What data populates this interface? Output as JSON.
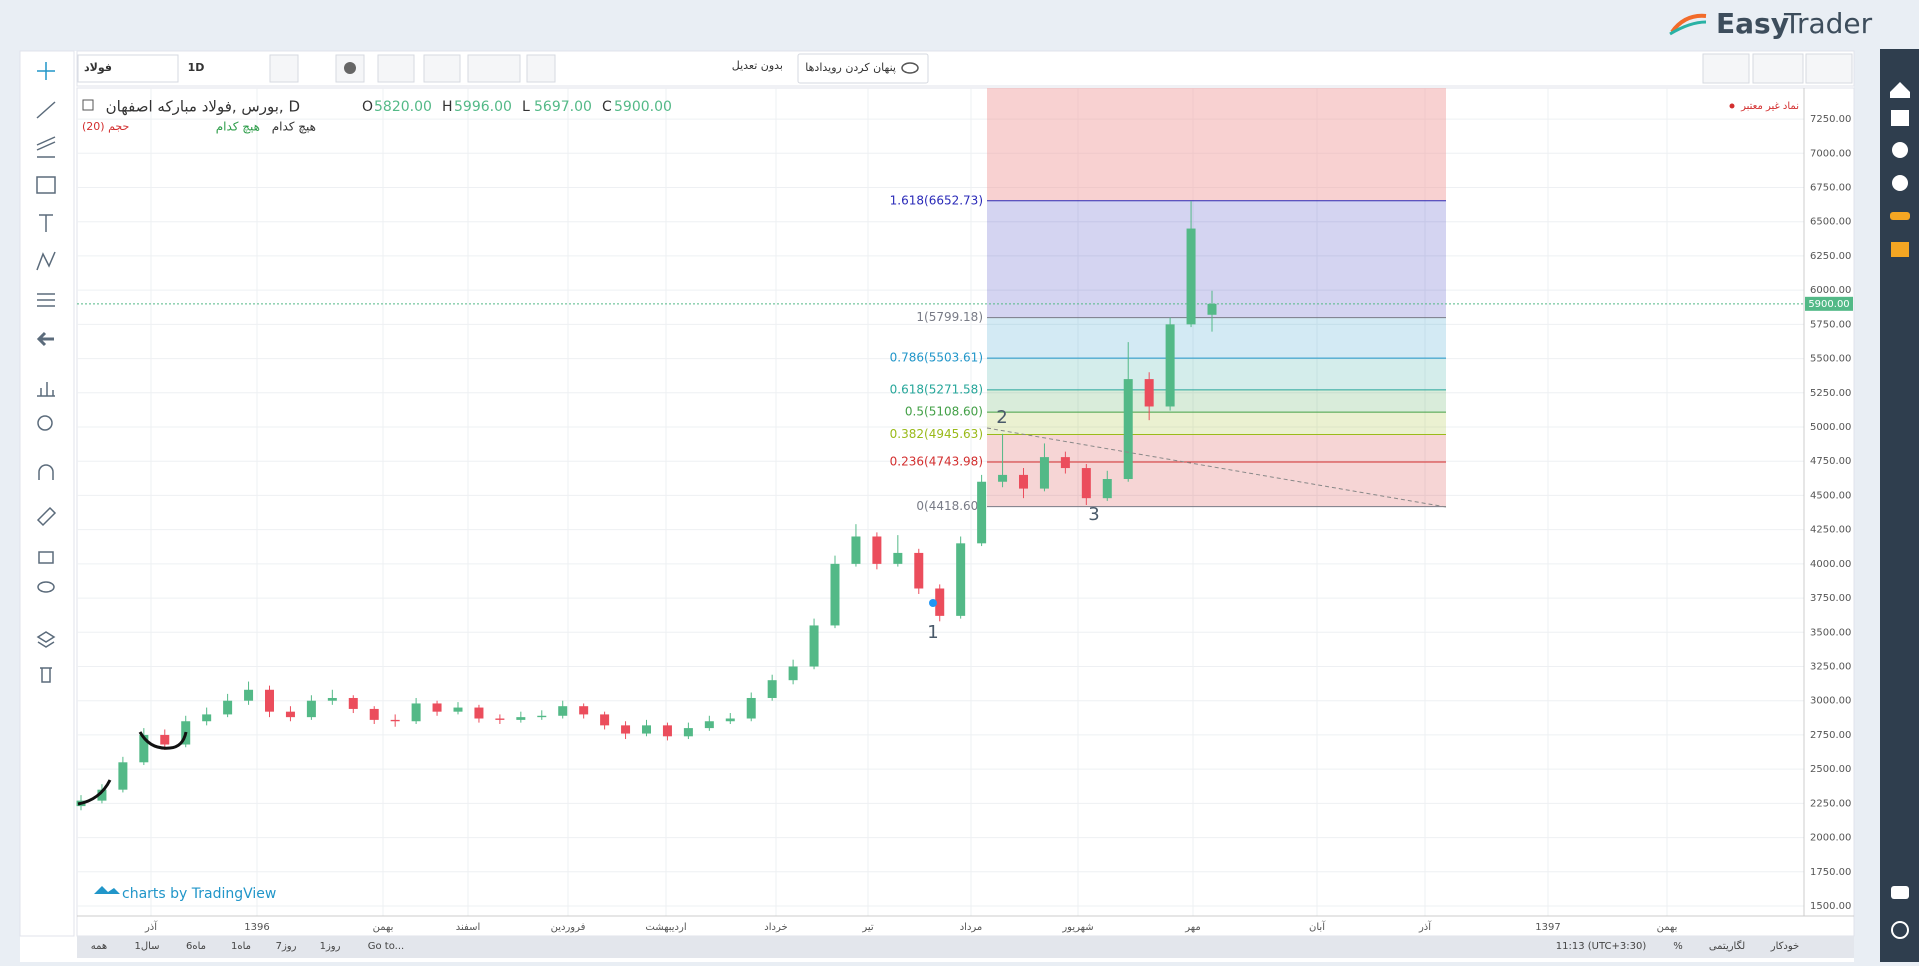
{
  "header": {
    "logo_easy": "Easy",
    "logo_trader": "Trader"
  },
  "toolbar": {
    "symbol": "فولاد",
    "interval": "1D",
    "adjustment": "بدون تعدیل",
    "hide_events": "پنهان کردن رویدادها"
  },
  "legend": {
    "title": "بورس ,فولاد مبارکه اصفهان, D",
    "ohlc": [
      {
        "name": "O",
        "value": 5820,
        "label": "5820.00"
      },
      {
        "name": "H",
        "value": 5996,
        "label": "5996.00"
      },
      {
        "name": "L",
        "value": 5697,
        "label": "5697.00"
      },
      {
        "name": "C",
        "value": 5900,
        "label": "5900.00"
      }
    ],
    "volume": "حجم (20)",
    "none_green": "هیچ کدام",
    "none_black": "هیچ کدام",
    "invalid_symbol": "نماد غیر معتبر"
  },
  "watermark": "charts by TradingView",
  "bottom_bar": {
    "ranges": [
      "همه",
      "1سال",
      "6ماه",
      "1ماه",
      "7روز",
      "1روز",
      "Go to..."
    ],
    "time": "11:13 (UTC+3:30)",
    "percent": "%",
    "log": "لگاریتمی",
    "auto": "خودکار"
  },
  "chart_data": {
    "type": "candlestick",
    "up_color": "#53b987",
    "down_color": "#eb4d5c",
    "ohlc": [
      [
        2230,
        2310,
        2200,
        2270
      ],
      [
        2270,
        2390,
        2250,
        2350
      ],
      [
        2350,
        2590,
        2330,
        2550
      ],
      [
        2550,
        2800,
        2530,
        2750
      ],
      [
        2750,
        2790,
        2640,
        2680
      ],
      [
        2680,
        2890,
        2660,
        2850
      ],
      [
        2850,
        2950,
        2820,
        2900
      ],
      [
        2900,
        3050,
        2880,
        3000
      ],
      [
        3000,
        3140,
        2970,
        3080
      ],
      [
        3080,
        3110,
        2880,
        2920
      ],
      [
        2920,
        2960,
        2850,
        2880
      ],
      [
        2880,
        3040,
        2860,
        3000
      ],
      [
        3000,
        3080,
        2970,
        3020
      ],
      [
        3020,
        3040,
        2910,
        2940
      ],
      [
        2940,
        2960,
        2830,
        2860
      ],
      [
        2860,
        2900,
        2810,
        2850
      ],
      [
        2850,
        3020,
        2830,
        2980
      ],
      [
        2980,
        3000,
        2890,
        2920
      ],
      [
        2920,
        2990,
        2900,
        2950
      ],
      [
        2950,
        2970,
        2840,
        2870
      ],
      [
        2870,
        2900,
        2830,
        2860
      ],
      [
        2860,
        2920,
        2840,
        2880
      ],
      [
        2880,
        2930,
        2860,
        2890
      ],
      [
        2890,
        3000,
        2870,
        2960
      ],
      [
        2960,
        2980,
        2870,
        2900
      ],
      [
        2900,
        2920,
        2790,
        2820
      ],
      [
        2820,
        2850,
        2720,
        2760
      ],
      [
        2760,
        2860,
        2740,
        2820
      ],
      [
        2820,
        2840,
        2710,
        2740
      ],
      [
        2740,
        2840,
        2720,
        2800
      ],
      [
        2800,
        2890,
        2780,
        2850
      ],
      [
        2850,
        2910,
        2830,
        2870
      ],
      [
        2870,
        3060,
        2850,
        3020
      ],
      [
        3020,
        3190,
        3000,
        3150
      ],
      [
        3150,
        3300,
        3120,
        3250
      ],
      [
        3250,
        3600,
        3230,
        3550
      ],
      [
        3550,
        4060,
        3530,
        4000
      ],
      [
        4000,
        4290,
        3980,
        4200
      ],
      [
        4200,
        4230,
        3960,
        4000
      ],
      [
        4000,
        4210,
        3980,
        4080
      ],
      [
        4080,
        4110,
        3780,
        3820
      ],
      [
        3820,
        3850,
        3580,
        3620
      ],
      [
        3620,
        4200,
        3600,
        4150
      ],
      [
        4150,
        4650,
        4130,
        4600
      ],
      [
        4600,
        4950,
        4560,
        4650
      ],
      [
        4650,
        4700,
        4480,
        4550
      ],
      [
        4550,
        4880,
        4530,
        4780
      ],
      [
        4780,
        4820,
        4660,
        4700
      ],
      [
        4700,
        4730,
        4430,
        4480
      ],
      [
        4480,
        4680,
        4460,
        4620
      ],
      [
        4620,
        5620,
        4600,
        5350
      ],
      [
        5350,
        5400,
        5050,
        5150
      ],
      [
        5150,
        5800,
        5120,
        5750
      ],
      [
        5750,
        6650,
        5730,
        6450
      ],
      [
        5820,
        5996,
        5697,
        5900
      ]
    ],
    "ylim": [
      1427,
      7477
    ],
    "yticks": [
      {
        "value": 1500,
        "label": "1500.00"
      },
      {
        "value": 1750,
        "label": "1750.00"
      },
      {
        "value": 2000,
        "label": "2000.00"
      },
      {
        "value": 2250,
        "label": "2250.00"
      },
      {
        "value": 2500,
        "label": "2500.00"
      },
      {
        "value": 2750,
        "label": "2750.00"
      },
      {
        "value": 3000,
        "label": "3000.00"
      },
      {
        "value": 3250,
        "label": "3250.00"
      },
      {
        "value": 3500,
        "label": "3500.00"
      },
      {
        "value": 3750,
        "label": "3750.00"
      },
      {
        "value": 4000,
        "label": "4000.00"
      },
      {
        "value": 4250,
        "label": "4250.00"
      },
      {
        "value": 4500,
        "label": "4500.00"
      },
      {
        "value": 4750,
        "label": "4750.00"
      },
      {
        "value": 5000,
        "label": "5000.00"
      },
      {
        "value": 5250,
        "label": "5250.00"
      },
      {
        "value": 5500,
        "label": "5500.00"
      },
      {
        "value": 5750,
        "label": "5750.00"
      },
      {
        "value": 6000,
        "label": "6000.00"
      },
      {
        "value": 6250,
        "label": "6250.00"
      },
      {
        "value": 6500,
        "label": "6500.00"
      },
      {
        "value": 6750,
        "label": "6750.00"
      },
      {
        "value": 7000,
        "label": "7000.00"
      },
      {
        "value": 7250,
        "label": "7250.00"
      }
    ],
    "time_labels": [
      "آذر",
      "1396",
      "بهمن",
      "اسفند",
      "فروردین",
      "اردیبهشت",
      "خرداد",
      "تیر",
      "مرداد",
      "شهریور",
      "مهر",
      "آبان",
      "آذر",
      "1397",
      "بهمن"
    ],
    "grid": true,
    "last_price": {
      "value": 5900,
      "label": "5900.00"
    },
    "fib_top_color": "#ef9a9a",
    "fib": [
      {
        "value": 6652.73,
        "label": "1.618(6652.73)",
        "color": "#2a2ab8"
      },
      {
        "value": 5799.18,
        "label": "1(5799.18)",
        "color": "#787b86"
      },
      {
        "value": 5503.61,
        "label": "0.786(5503.61)",
        "color": "#2196c9"
      },
      {
        "value": 5271.58,
        "label": "0.618(5271.58)",
        "color": "#26a69a"
      },
      {
        "value": 5108.6,
        "label": "0.5(5108.60)",
        "color": "#43a047"
      },
      {
        "value": 4945.63,
        "label": "0.382(4945.63)",
        "color": "#9aba1a"
      },
      {
        "value": 4743.98,
        "label": "0.236(4743.98)",
        "color": "#d32f2f"
      },
      {
        "value": 4418.6,
        "label": "0(4418.60)",
        "color": "#787b86"
      }
    ],
    "wave_labels": [
      "1",
      "2",
      "3"
    ]
  }
}
